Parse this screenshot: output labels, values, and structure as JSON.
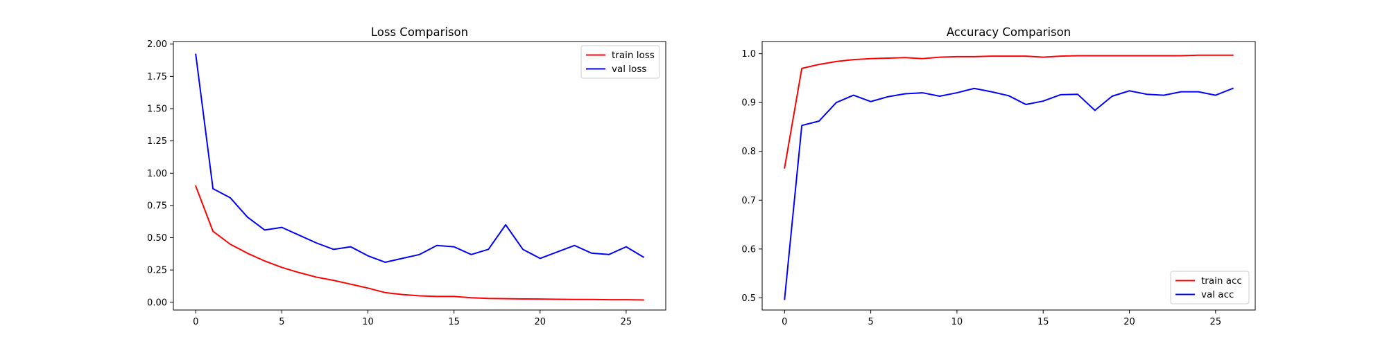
{
  "chart_data": [
    {
      "type": "line",
      "title": "Loss Comparison",
      "xlabel": "",
      "ylabel": "",
      "xlim": [
        -1.3,
        27.3
      ],
      "ylim": [
        -0.06,
        2.02
      ],
      "xticks": [
        0,
        5,
        10,
        15,
        20,
        25
      ],
      "yticks": [
        0.0,
        0.25,
        0.5,
        0.75,
        1.0,
        1.25,
        1.5,
        1.75,
        2.0
      ],
      "ytick_labels": [
        "0.00",
        "0.25",
        "0.50",
        "0.75",
        "1.00",
        "1.25",
        "1.50",
        "1.75",
        "2.00"
      ],
      "grid": false,
      "legend_position": "upper right",
      "x": [
        0,
        1,
        2,
        3,
        4,
        5,
        6,
        7,
        8,
        9,
        10,
        11,
        12,
        13,
        14,
        15,
        16,
        17,
        18,
        19,
        20,
        21,
        22,
        23,
        24,
        25,
        26
      ],
      "series": [
        {
          "name": "train loss",
          "color": "#ff0000",
          "values": [
            0.9,
            0.55,
            0.45,
            0.38,
            0.32,
            0.27,
            0.23,
            0.195,
            0.17,
            0.14,
            0.11,
            0.075,
            0.06,
            0.05,
            0.045,
            0.045,
            0.035,
            0.03,
            0.028,
            0.026,
            0.025,
            0.023,
            0.022,
            0.022,
            0.02,
            0.02,
            0.018
          ]
        },
        {
          "name": "val loss",
          "color": "#0000ff",
          "values": [
            1.92,
            0.88,
            0.81,
            0.66,
            0.56,
            0.58,
            0.52,
            0.46,
            0.41,
            0.43,
            0.36,
            0.31,
            0.34,
            0.37,
            0.44,
            0.43,
            0.37,
            0.41,
            0.6,
            0.41,
            0.34,
            0.39,
            0.44,
            0.38,
            0.37,
            0.43,
            0.35
          ]
        }
      ]
    },
    {
      "type": "line",
      "title": "Accuracy Comparison",
      "xlabel": "",
      "ylabel": "",
      "xlim": [
        -1.3,
        27.3
      ],
      "ylim": [
        0.475,
        1.025
      ],
      "xticks": [
        0,
        5,
        10,
        15,
        20,
        25
      ],
      "yticks": [
        0.5,
        0.6,
        0.7,
        0.8,
        0.9,
        1.0
      ],
      "ytick_labels": [
        "0.5",
        "0.6",
        "0.7",
        "0.8",
        "0.9",
        "1.0"
      ],
      "grid": false,
      "legend_position": "lower right",
      "x": [
        0,
        1,
        2,
        3,
        4,
        5,
        6,
        7,
        8,
        9,
        10,
        11,
        12,
        13,
        14,
        15,
        16,
        17,
        18,
        19,
        20,
        21,
        22,
        23,
        24,
        25,
        26
      ],
      "series": [
        {
          "name": "train acc",
          "color": "#ff0000",
          "values": [
            0.766,
            0.97,
            0.978,
            0.984,
            0.988,
            0.99,
            0.991,
            0.992,
            0.99,
            0.993,
            0.994,
            0.994,
            0.995,
            0.995,
            0.995,
            0.993,
            0.995,
            0.996,
            0.996,
            0.996,
            0.996,
            0.996,
            0.996,
            0.996,
            0.997,
            0.997,
            0.997
          ]
        },
        {
          "name": "val acc",
          "color": "#0000ff",
          "values": [
            0.497,
            0.853,
            0.862,
            0.9,
            0.915,
            0.902,
            0.912,
            0.918,
            0.92,
            0.913,
            0.92,
            0.929,
            0.922,
            0.914,
            0.896,
            0.903,
            0.916,
            0.917,
            0.884,
            0.913,
            0.924,
            0.917,
            0.915,
            0.922,
            0.922,
            0.915,
            0.929
          ]
        }
      ]
    }
  ]
}
